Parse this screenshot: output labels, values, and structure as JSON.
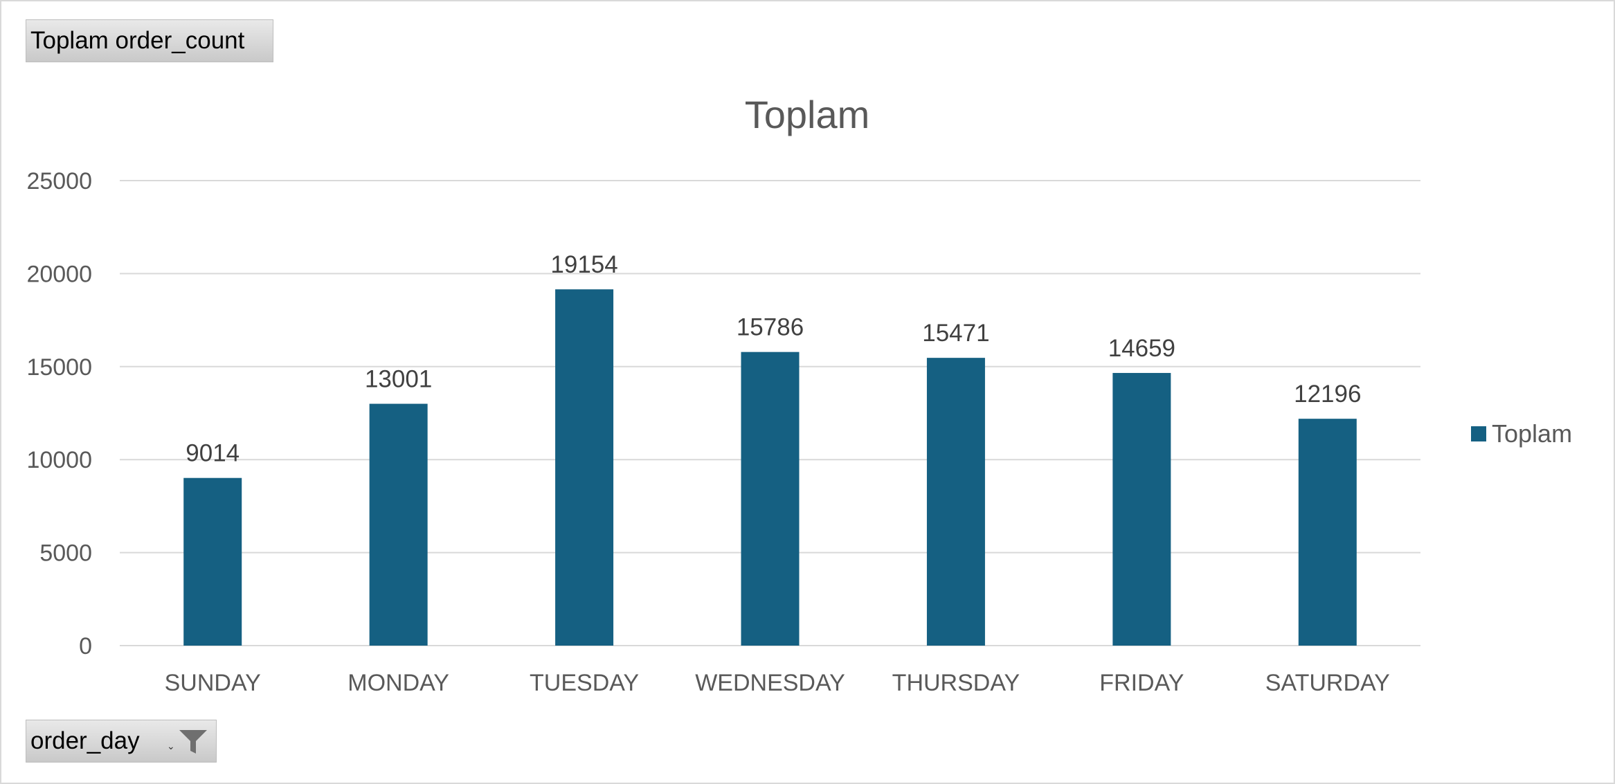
{
  "pivot": {
    "value_field_label": "Toplam order_count",
    "axis_field_label": "order_day",
    "dropdown_glyph": "⌄",
    "filter_icon": "funnel-filter-icon"
  },
  "colors": {
    "bar": "#156082",
    "gridline": "#d9d9d9"
  },
  "chart_data": {
    "type": "bar",
    "title": "Toplam",
    "categories": [
      "SUNDAY",
      "MONDAY",
      "TUESDAY",
      "WEDNESDAY",
      "THURSDAY",
      "FRIDAY",
      "SATURDAY"
    ],
    "series": [
      {
        "name": "Toplam",
        "values": [
          9014,
          13001,
          19154,
          15786,
          15471,
          14659,
          12196
        ]
      }
    ],
    "data_labels": [
      "9014",
      "13001",
      "19154",
      "15786",
      "15471",
      "14659",
      "12196"
    ],
    "ylim": [
      0,
      25000
    ],
    "yticks": [
      0,
      5000,
      10000,
      15000,
      20000,
      25000
    ],
    "ytick_labels": [
      "0",
      "5000",
      "10000",
      "15000",
      "20000",
      "25000"
    ],
    "xlabel": "",
    "ylabel": "",
    "grid": true,
    "legend_position": "right"
  }
}
